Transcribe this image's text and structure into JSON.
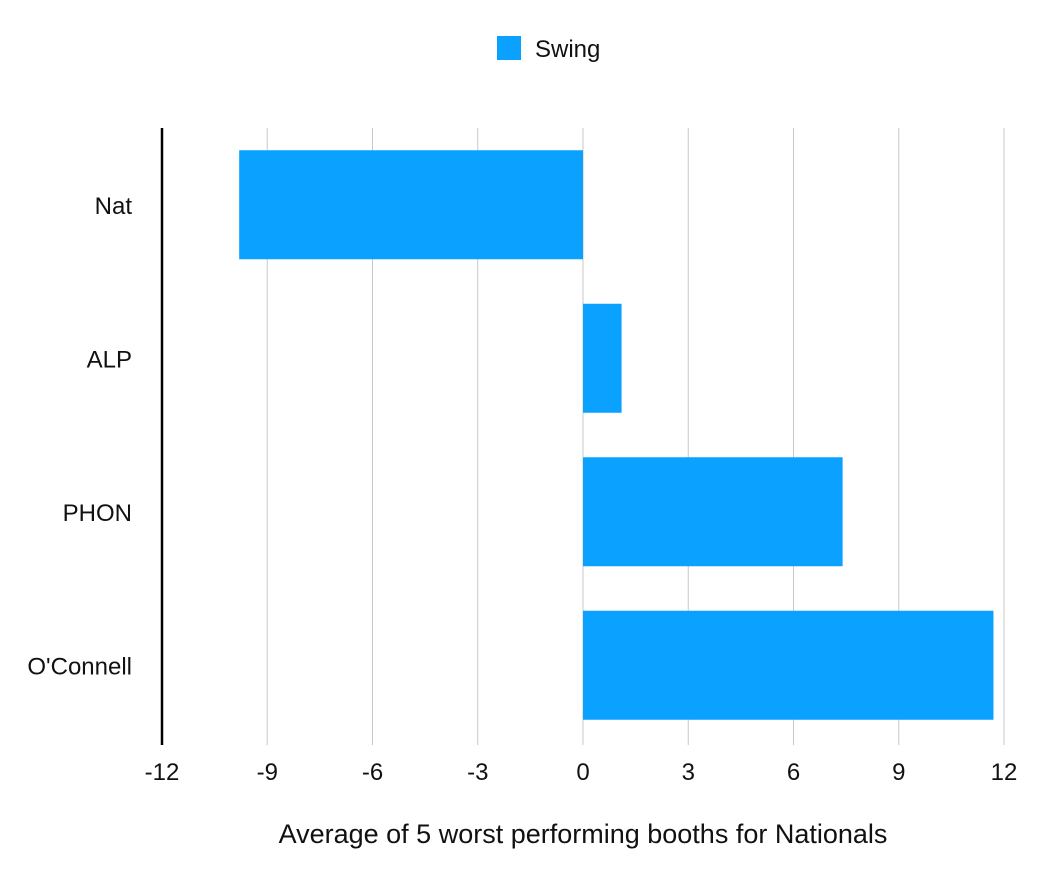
{
  "chart_data": {
    "type": "bar",
    "orientation": "horizontal",
    "categories": [
      "Nat",
      "ALP",
      "PHON",
      "O'Connell"
    ],
    "series": [
      {
        "name": "Swing",
        "values": [
          -9.8,
          1.1,
          7.4,
          11.7
        ],
        "color": "#0aa1ff"
      }
    ],
    "title": "",
    "xlabel": "Average of 5 worst performing booths for Nationals",
    "ylabel": "",
    "xlim": [
      -12,
      12
    ],
    "xticks": [
      -12,
      -9,
      -6,
      -3,
      0,
      3,
      6,
      9,
      12
    ],
    "xtick_labels": [
      "-12",
      "-9",
      "-6",
      "-3",
      "0",
      "3",
      "6",
      "9",
      "12"
    ],
    "grid": "vertical",
    "legend": {
      "position": "top-center",
      "entries": [
        "Swing"
      ]
    }
  }
}
